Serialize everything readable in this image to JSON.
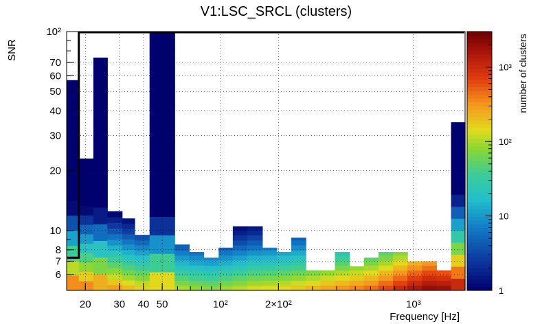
{
  "chart_data": {
    "type": "heatmap",
    "title": "V1:LSC_SRCL (clusters)",
    "xlabel": "Frequency [Hz]",
    "ylabel": "SNR",
    "zlabel": "number of clusters",
    "xscale": "log",
    "yscale": "log",
    "zscale": "log",
    "xlim": [
      16,
      1850
    ],
    "ylim": [
      5,
      100
    ],
    "zlim": [
      1,
      3000
    ],
    "grid": true,
    "x_ticks": [
      {
        "value": 20,
        "label": "20"
      },
      {
        "value": 30,
        "label": "30"
      },
      {
        "value": 40,
        "label": "40"
      },
      {
        "value": 50,
        "label": "50"
      },
      {
        "value": 100,
        "label": "10²"
      },
      {
        "value": 200,
        "label": "2×10²"
      },
      {
        "value": 1000,
        "label": "10³"
      }
    ],
    "y_ticks": [
      {
        "value": 6,
        "label": "6"
      },
      {
        "value": 7,
        "label": "7"
      },
      {
        "value": 8,
        "label": "8"
      },
      {
        "value": 10,
        "label": "10"
      },
      {
        "value": 20,
        "label": "20"
      },
      {
        "value": 30,
        "label": "30"
      },
      {
        "value": 40,
        "label": "40"
      },
      {
        "value": 50,
        "label": "50"
      },
      {
        "value": 60,
        "label": "60"
      },
      {
        "value": 70,
        "label": "70"
      },
      {
        "value": 100,
        "label": "10²"
      }
    ],
    "z_ticks": [
      {
        "value": 1,
        "label": "1"
      },
      {
        "value": 10,
        "label": "10"
      },
      {
        "value": 100,
        "label": "10²"
      },
      {
        "value": 1000,
        "label": "10³"
      }
    ],
    "columns": [
      {
        "f_lo": 16,
        "f_hi": 18.5,
        "snr_max": 57,
        "peak": 600
      },
      {
        "f_lo": 18.5,
        "f_hi": 22,
        "snr_max": 23,
        "peak": 500
      },
      {
        "f_lo": 22,
        "f_hi": 26,
        "snr_max": 74,
        "peak": 450
      },
      {
        "f_lo": 26,
        "f_hi": 31,
        "snr_max": 12.5,
        "peak": 350
      },
      {
        "f_lo": 31,
        "f_hi": 36,
        "snr_max": 11.5,
        "peak": 250
      },
      {
        "f_lo": 36,
        "f_hi": 43,
        "snr_max": 9.5,
        "peak": 200
      },
      {
        "f_lo": 43,
        "f_hi": 50,
        "snr_max": 100,
        "peak": 300
      },
      {
        "f_lo": 50,
        "f_hi": 58,
        "snr_max": 100,
        "peak": 300
      },
      {
        "f_lo": 58,
        "f_hi": 69,
        "snr_max": 8.5,
        "peak": 120
      },
      {
        "f_lo": 69,
        "f_hi": 82,
        "snr_max": 7.8,
        "peak": 100
      },
      {
        "f_lo": 82,
        "f_hi": 98,
        "snr_max": 7.3,
        "peak": 90
      },
      {
        "f_lo": 98,
        "f_hi": 116,
        "snr_max": 8.2,
        "peak": 110
      },
      {
        "f_lo": 116,
        "f_hi": 138,
        "snr_max": 10.5,
        "peak": 130
      },
      {
        "f_lo": 138,
        "f_hi": 165,
        "snr_max": 10.5,
        "peak": 160
      },
      {
        "f_lo": 165,
        "f_hi": 196,
        "snr_max": 8.2,
        "peak": 170
      },
      {
        "f_lo": 196,
        "f_hi": 233,
        "snr_max": 7.8,
        "peak": 190
      },
      {
        "f_lo": 233,
        "f_hi": 277,
        "snr_max": 9.2,
        "peak": 220
      },
      {
        "f_lo": 277,
        "f_hi": 330,
        "snr_max": 6.3,
        "peak": 260
      },
      {
        "f_lo": 330,
        "f_hi": 392,
        "snr_max": 6.3,
        "peak": 320
      },
      {
        "f_lo": 392,
        "f_hi": 466,
        "snr_max": 7.8,
        "peak": 380
      },
      {
        "f_lo": 466,
        "f_hi": 554,
        "snr_max": 6.6,
        "peak": 450
      },
      {
        "f_lo": 554,
        "f_hi": 659,
        "snr_max": 7.3,
        "peak": 550
      },
      {
        "f_lo": 659,
        "f_hi": 783,
        "snr_max": 7.8,
        "peak": 800
      },
      {
        "f_lo": 783,
        "f_hi": 931,
        "snr_max": 7.8,
        "peak": 1200
      },
      {
        "f_lo": 931,
        "f_hi": 1107,
        "snr_max": 7.0,
        "peak": 1800
      },
      {
        "f_lo": 1107,
        "f_hi": 1316,
        "snr_max": 7.0,
        "peak": 2400
      },
      {
        "f_lo": 1316,
        "f_hi": 1565,
        "snr_max": 6.3,
        "peak": 2200
      },
      {
        "f_lo": 1565,
        "f_hi": 1850,
        "snr_max": 35,
        "peak": 1600
      }
    ],
    "snr_threshold_box": {
      "f_from": 18.5,
      "snr_from": 7.3,
      "snr_to": 100
    }
  }
}
